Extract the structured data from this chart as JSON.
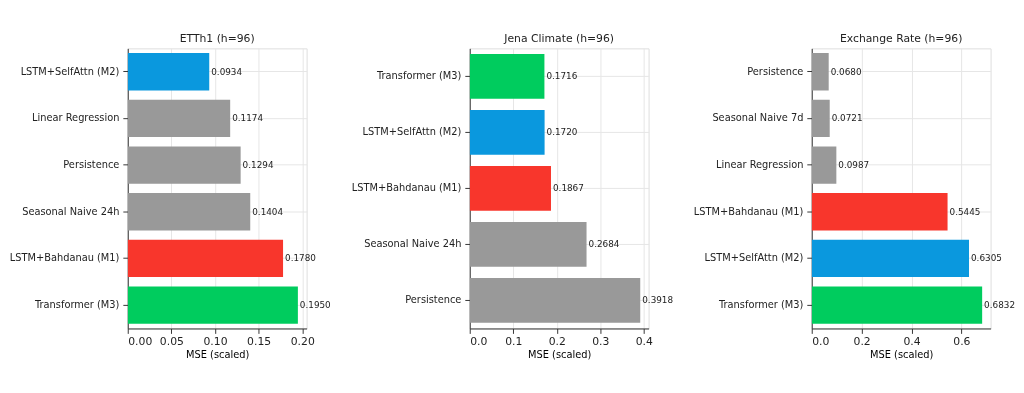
{
  "chart_data": [
    {
      "type": "bar",
      "orientation": "horizontal",
      "title": "ETTh1  (h=96)",
      "xlabel": "MSE (scaled)",
      "categories": [
        "LSTM+SelfAttn (M2)",
        "Linear Regression",
        "Persistence",
        "Seasonal Naive 24h",
        "LSTM+Bahdanau (M1)",
        "Transformer (M3)"
      ],
      "values": [
        0.0934,
        0.1174,
        0.1294,
        0.1404,
        0.178,
        0.195
      ],
      "value_labels": [
        "0.0934",
        "0.1174",
        "0.1294",
        "0.1404",
        "0.1780",
        "0.1950"
      ],
      "colors": [
        "#0a98de",
        "#999999",
        "#999999",
        "#999999",
        "#f8362c",
        "#00cc5e"
      ],
      "xlim": [
        0,
        0.205
      ],
      "xticks": [
        {
          "value": 0,
          "label": "0.00"
        },
        0.05,
        {
          "value": 0.1,
          "label": "0.10"
        },
        0.15,
        {
          "value": 0.2,
          "label": "0.20"
        }
      ],
      "grid": true
    },
    {
      "type": "bar",
      "orientation": "horizontal",
      "title": "Jena Climate  (h=96)",
      "xlabel": "MSE (scaled)",
      "categories": [
        "Transformer (M3)",
        "LSTM+SelfAttn (M2)",
        "LSTM+Bahdanau (M1)",
        "Seasonal Naive 24h",
        "Persistence"
      ],
      "values": [
        0.1716,
        0.172,
        0.1867,
        0.2684,
        0.3918
      ],
      "value_labels": [
        "0.1716",
        "0.1720",
        "0.1867",
        "0.2684",
        "0.3918"
      ],
      "colors": [
        "#00cc5e",
        "#0a98de",
        "#f8362c",
        "#999999",
        "#999999"
      ],
      "xlim": [
        0,
        0.411
      ],
      "xticks": [
        {
          "value": 0,
          "label": "0.0"
        },
        0.1,
        0.2,
        0.3,
        0.4
      ],
      "grid": true
    },
    {
      "type": "bar",
      "orientation": "horizontal",
      "title": "Exchange Rate  (h=96)",
      "xlabel": "MSE (scaled)",
      "categories": [
        "Persistence",
        "Seasonal Naive 7d",
        "Linear Regression",
        "LSTM+Bahdanau (M1)",
        "LSTM+SelfAttn (M2)",
        "Transformer (M3)"
      ],
      "values": [
        0.068,
        0.0721,
        0.0987,
        0.5445,
        0.6305,
        0.6832
      ],
      "value_labels": [
        "0.0680",
        "0.0721",
        "0.0987",
        "0.5445",
        "0.6305",
        "0.6832"
      ],
      "colors": [
        "#999999",
        "#999999",
        "#999999",
        "#f8362c",
        "#0a98de",
        "#00cc5e"
      ],
      "xlim": [
        0,
        0.717
      ],
      "xticks": [
        {
          "value": 0,
          "label": "0.0"
        },
        0.2,
        0.4,
        0.6
      ],
      "grid": true
    }
  ]
}
